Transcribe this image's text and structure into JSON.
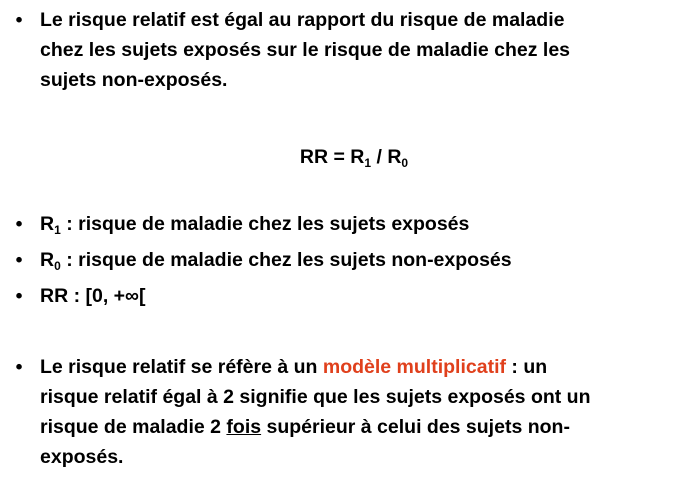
{
  "colors": {
    "text": "#000000",
    "accent": "#e0401c",
    "background": "#ffffff"
  },
  "bullet_glyph": "•",
  "bullet1": {
    "lines": [
      "Le risque relatif est égal au rapport du risque de maladie",
      "chez les sujets exposés sur le risque de maladie chez les",
      "sujets non-exposés."
    ]
  },
  "formula": {
    "left": "RR = R",
    "sub1": "1",
    "middle": " / R",
    "sub2": "0"
  },
  "defs": [
    {
      "prefix": "R",
      "sub": "1",
      "text": " : risque de maladie chez les sujets exposés"
    },
    {
      "prefix": "R",
      "sub": "0",
      "text": " : risque de maladie chez les sujets non-exposés"
    },
    {
      "prefix": "RR : [0, +∞[",
      "sub": "",
      "text": ""
    }
  ],
  "bullet_last": {
    "line1_before": "Le risque relatif se réfère à un ",
    "line1_accent": "modèle multiplicatif",
    "line1_after": " : un",
    "line2": "risque relatif égal à 2 signifie que les sujets exposés ont un",
    "line3_before": "risque de maladie 2 ",
    "line3_underlined": "fois",
    "line3_after": " supérieur à celui des sujets non-",
    "line4": "exposés."
  }
}
